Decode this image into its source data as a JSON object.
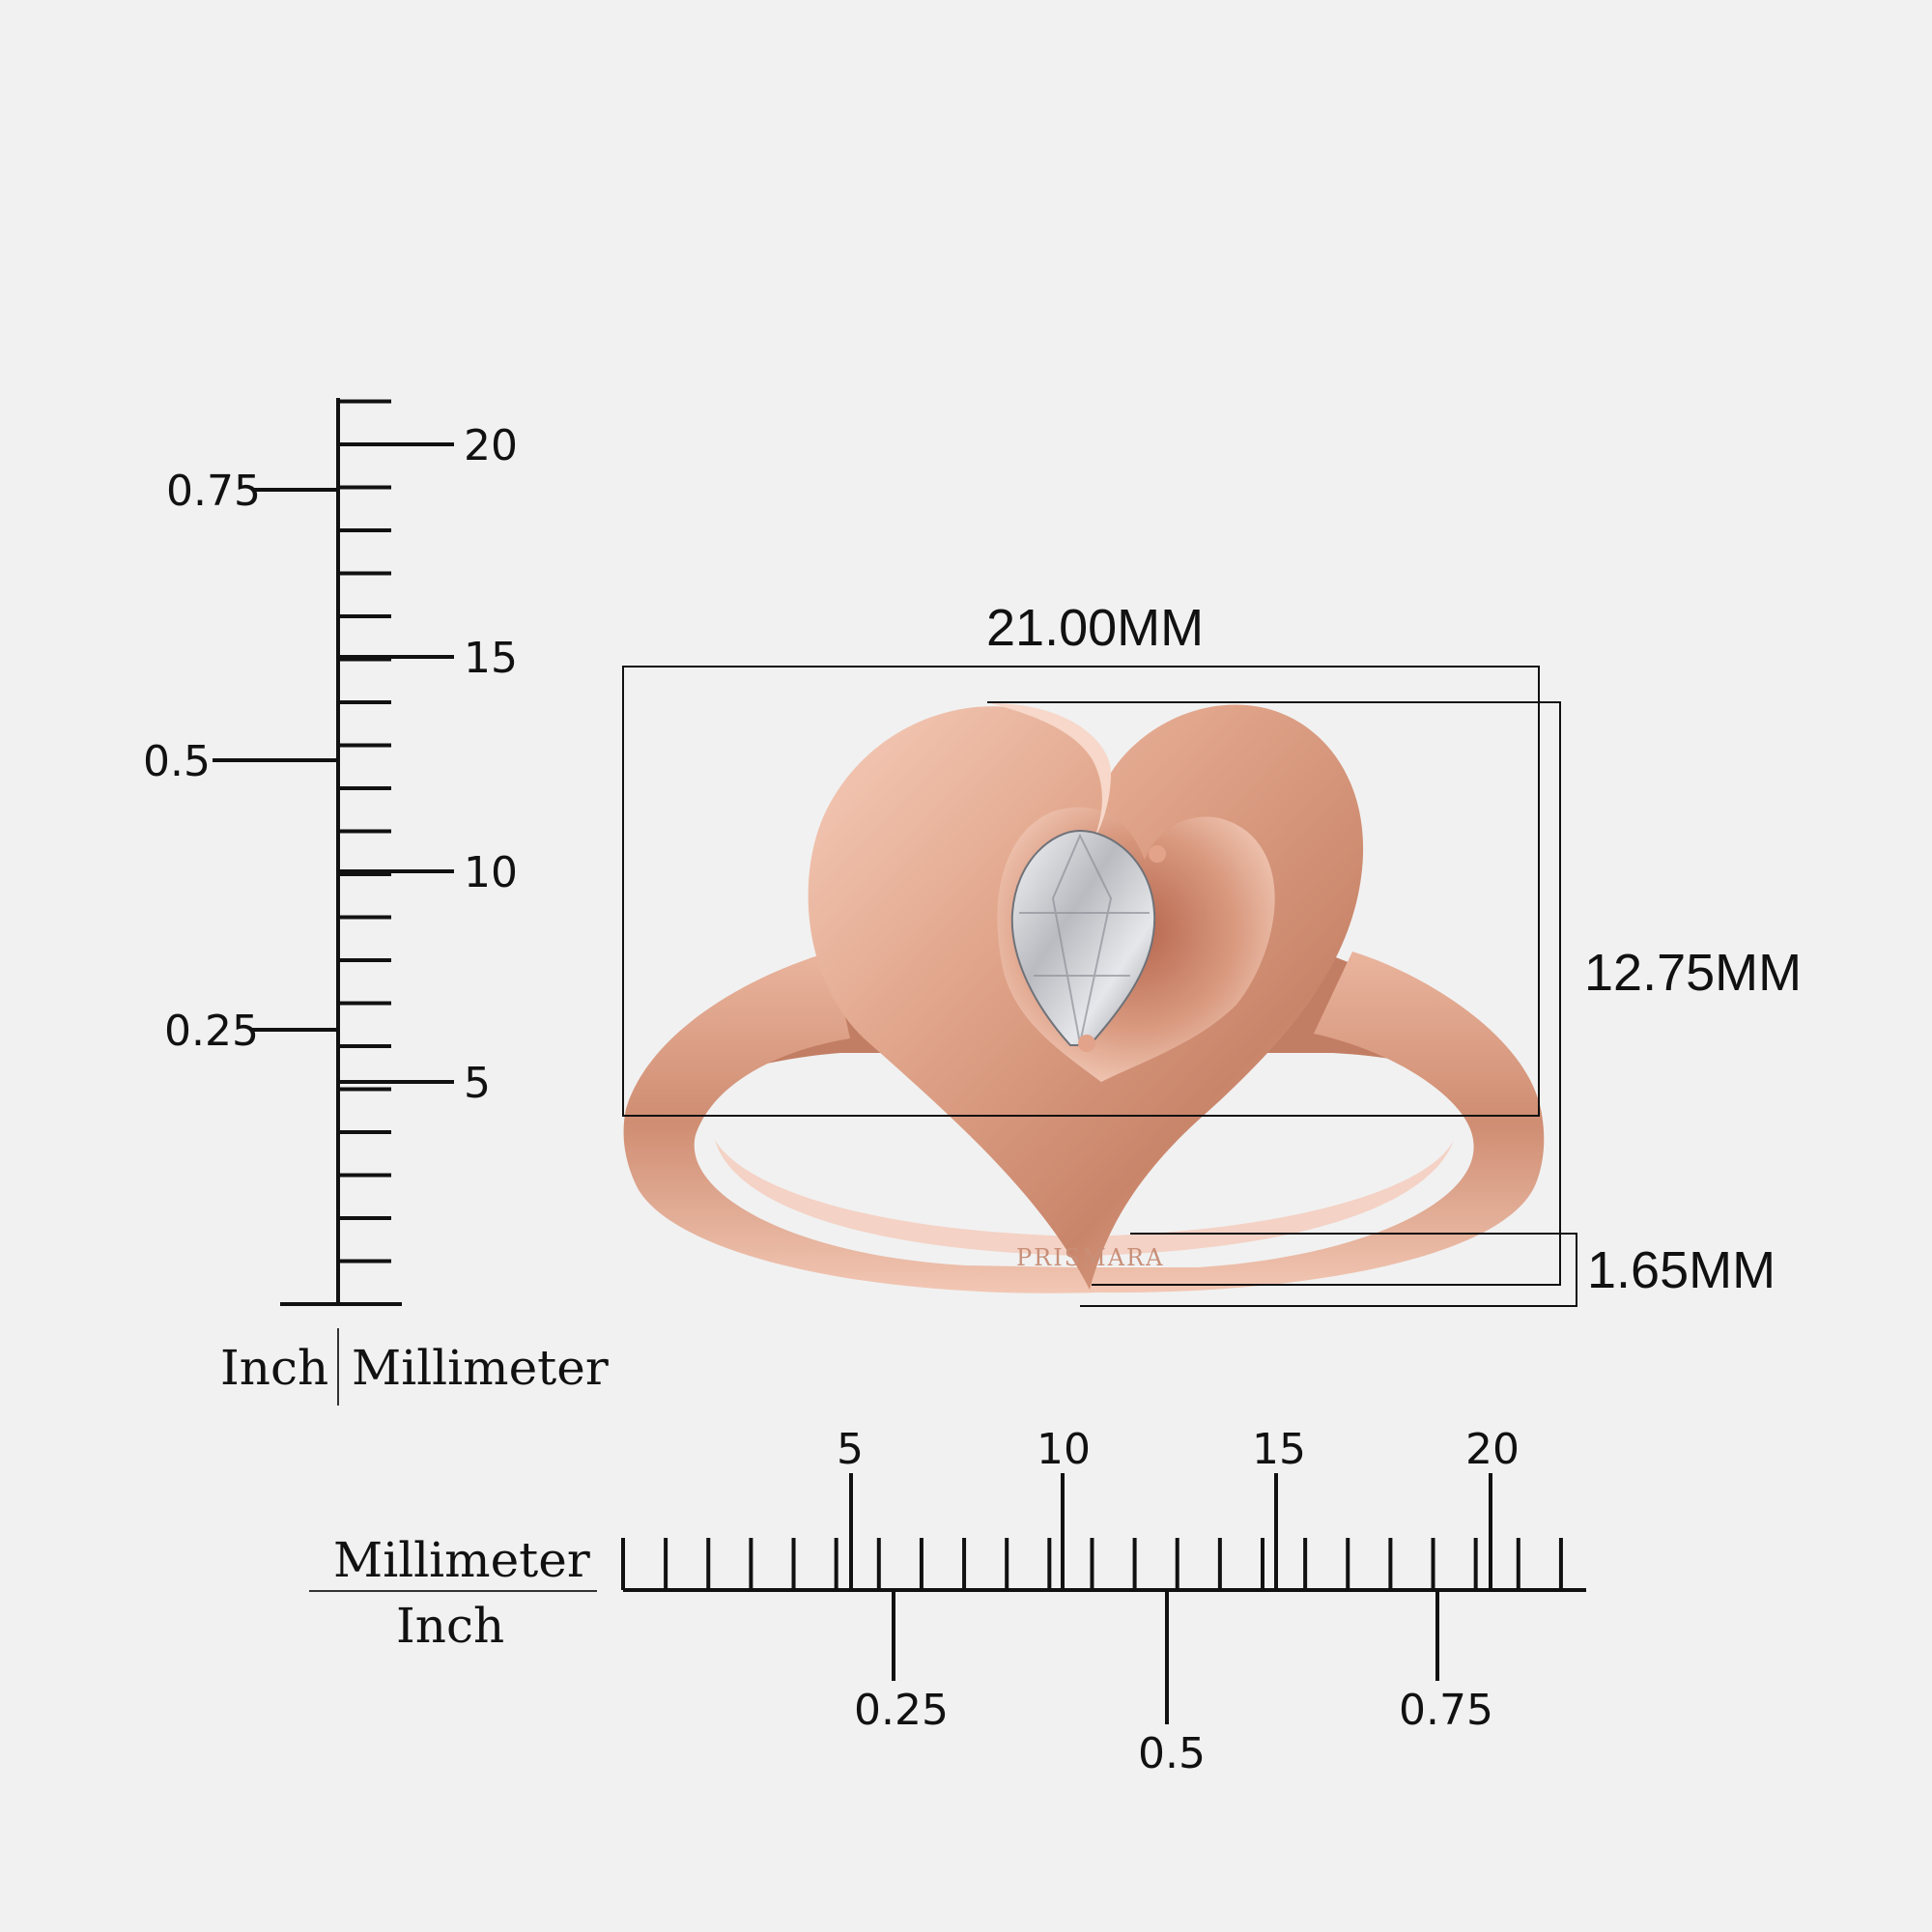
{
  "rulers": {
    "vertical": {
      "label_left": "Inch",
      "label_right": "Millimeter",
      "mm_labels": [
        "5",
        "10",
        "15",
        "20"
      ],
      "inch_labels": [
        "0.25",
        "0.5",
        "0.75"
      ]
    },
    "horizontal": {
      "label_top": "Millimeter",
      "label_bottom": "Inch",
      "mm_labels": [
        "5",
        "10",
        "15",
        "20"
      ],
      "inch_labels": [
        "0.25",
        "0.5",
        "0.75"
      ]
    }
  },
  "dimensions": {
    "width": "21.00MM",
    "height": "12.75MM",
    "band_thickness": "1.65MM"
  },
  "product": {
    "engraving": "PRISMARA",
    "metal_color": "#d99a80",
    "stone_color": "#dcdde0"
  }
}
